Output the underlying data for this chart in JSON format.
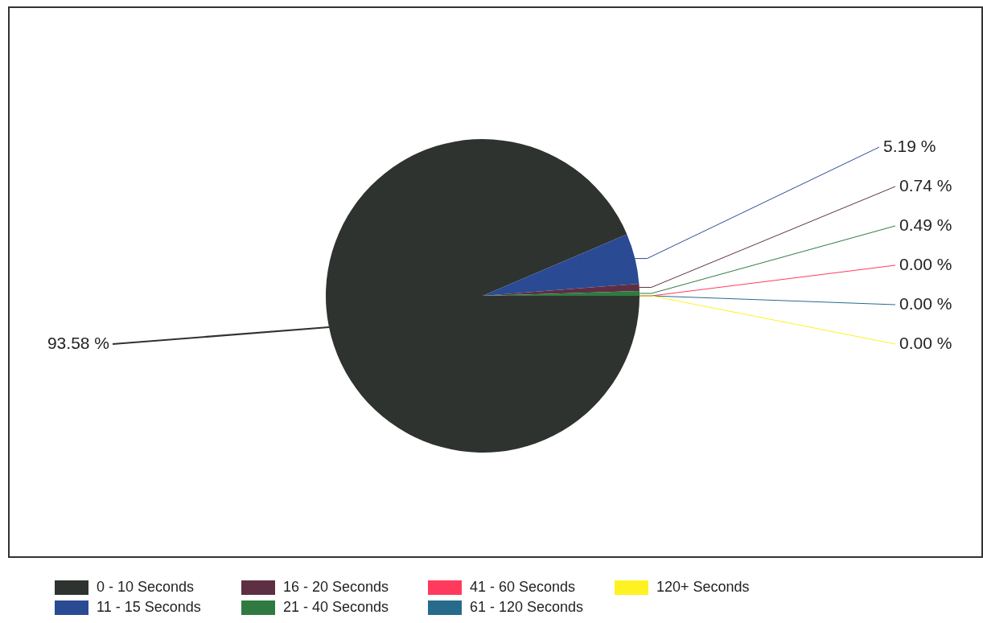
{
  "chart_data": {
    "type": "pie",
    "categories": [
      "0 - 10 Seconds",
      "11 - 15 Seconds",
      "16 - 20 Seconds",
      "21 - 40 Seconds",
      "41 - 60 Seconds",
      "61 - 120 Seconds",
      "120+ Seconds"
    ],
    "values": [
      93.58,
      5.19,
      0.74,
      0.49,
      0.0,
      0.0,
      0.0
    ],
    "value_labels": [
      "93.58 %",
      "5.19 %",
      "0.74 %",
      "0.49 %",
      "0.00 %",
      "0.00 %",
      "0.00 %"
    ],
    "colors": [
      "#2e332f",
      "#2b4a94",
      "#5e2f42",
      "#2f7a40",
      "#ff3a5c",
      "#276b8c",
      "#fff222"
    ],
    "legend": "bottom"
  }
}
